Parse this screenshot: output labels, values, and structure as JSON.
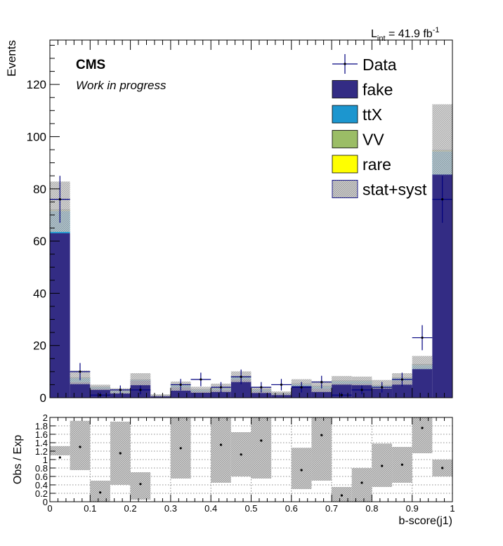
{
  "header": {
    "lumi_label": "L",
    "lumi_sub": "int",
    "lumi_value": " = 41.9 fb",
    "lumi_exp": "-1"
  },
  "stamp": {
    "experiment": "CMS",
    "status": "Work in progress"
  },
  "colors": {
    "fake": "#332c84",
    "ttX": "#1c96cf",
    "VV": "#9bbd66",
    "rare": "#ffff00",
    "data": "#00007f",
    "uncertainty": "#a0a0a0"
  },
  "chart_data": [
    {
      "type": "histogram",
      "name": "main",
      "ylabel": "Events",
      "xlim": [
        0,
        1
      ],
      "ylim": [
        0,
        137
      ],
      "yticks": [
        0,
        20,
        40,
        60,
        80,
        100,
        120
      ],
      "bin_edges": [
        0,
        0.05,
        0.1,
        0.15,
        0.2,
        0.25,
        0.3,
        0.35,
        0.4,
        0.45,
        0.5,
        0.55,
        0.6,
        0.65,
        0.7,
        0.75,
        0.8,
        0.85,
        0.9,
        0.95,
        1.0
      ],
      "stack": [
        {
          "name": "fake",
          "values": [
            63.0,
            6.0,
            3.5,
            2.0,
            6.5,
            0.7,
            4.0,
            2.5,
            3.0,
            7.0,
            2.5,
            1.5,
            4.5,
            3.5,
            5.5,
            5.5,
            3.8,
            6.5,
            11.0,
            85.5
          ]
        },
        {
          "name": "ttX",
          "values": [
            8.5,
            1.5,
            0.5,
            0.5,
            0.3,
            0.1,
            0.8,
            0.5,
            0.5,
            1.0,
            0.5,
            0.2,
            0.7,
            0.8,
            0.8,
            0.8,
            0.8,
            1.0,
            1.5,
            8.8
          ]
        },
        {
          "name": "VV",
          "values": [
            0.3,
            0.1,
            0.1,
            0.1,
            0.1,
            0.0,
            0.1,
            0.1,
            0.1,
            0.1,
            0.1,
            0.0,
            0.1,
            0.1,
            0.1,
            0.1,
            0.1,
            0.1,
            0.2,
            0.3
          ]
        },
        {
          "name": "rare",
          "values": [
            0.2,
            0.1,
            0.0,
            0.0,
            0.0,
            0.0,
            0.1,
            0.0,
            0.1,
            0.1,
            0.0,
            0.0,
            0.1,
            0.1,
            0.1,
            0.1,
            0.1,
            0.1,
            0.1,
            0.2
          ]
        }
      ],
      "uncertainty": {
        "name": "stat+syst",
        "down": [
          63.5,
          5.2,
          3.0,
          1.6,
          4.8,
          0.5,
          2.7,
          1.9,
          2.2,
          6.0,
          1.8,
          1.0,
          4.5,
          2.2,
          5.0,
          4.8,
          3.5,
          5.0,
          11.0,
          85.5
        ],
        "up": [
          82.8,
          10.4,
          5.0,
          3.6,
          9.4,
          1.3,
          6.2,
          4.2,
          5.4,
          10.1,
          4.2,
          2.4,
          7.1,
          6.3,
          8.3,
          8.1,
          6.8,
          9.4,
          16.0,
          112.4
        ]
      },
      "data": {
        "name": "Data",
        "values": [
          76,
          10,
          1,
          3,
          3,
          0,
          5,
          7,
          4,
          8,
          4,
          5,
          4,
          6,
          1,
          3,
          4,
          7,
          23,
          76
        ],
        "err_up": [
          9,
          3.3,
          1.0,
          1.7,
          1.7,
          0,
          2.2,
          2.6,
          2.0,
          2.8,
          2.0,
          2.2,
          2.0,
          2.4,
          1.0,
          1.7,
          2.0,
          2.6,
          4.8,
          9
        ],
        "err_down": [
          9,
          3.3,
          1.0,
          1.7,
          1.7,
          0,
          2.2,
          2.6,
          2.0,
          2.8,
          2.0,
          2.2,
          2.0,
          2.4,
          1.0,
          1.7,
          2.0,
          2.6,
          4.8,
          9
        ]
      },
      "legend": {
        "placement": "top-right",
        "entries": [
          {
            "label": "Data",
            "kind": "marker"
          },
          {
            "label": "fake",
            "kind": "fill",
            "series": "fake"
          },
          {
            "label": "ttX",
            "kind": "fill",
            "series": "ttX"
          },
          {
            "label": "VV",
            "kind": "fill",
            "series": "VV"
          },
          {
            "label": "rare",
            "kind": "fill",
            "series": "rare"
          },
          {
            "label": "stat+syst",
            "kind": "hatch"
          }
        ]
      }
    },
    {
      "type": "ratio",
      "name": "ratio",
      "ylabel": "Obs / Exp",
      "xlabel": "b-score(j1)",
      "xlim": [
        0,
        1
      ],
      "ylim": [
        0,
        2
      ],
      "yticks": [
        0,
        0.2,
        0.4,
        0.6,
        0.8,
        1,
        1.2,
        1.4,
        1.6,
        1.8,
        2
      ],
      "ytick_labels": [
        "0",
        "0.2",
        "0.4",
        "0.6",
        "0.8",
        "1",
        "1.2",
        "1.4",
        "1.6",
        "1.8",
        "2"
      ],
      "xticks": [
        0,
        0.1,
        0.2,
        0.3,
        0.4,
        0.5,
        0.6,
        0.7,
        0.8,
        0.9,
        1
      ],
      "xtick_labels": [
        "0",
        "0.1",
        "0.2",
        "0.3",
        "0.4",
        "0.5",
        "0.6",
        "0.7",
        "0.8",
        "0.9",
        "1"
      ],
      "grid": true,
      "ratio_values": [
        1.05,
        1.3,
        0.22,
        1.15,
        0.42,
        null,
        1.27,
        null,
        1.35,
        1.12,
        1.45,
        null,
        0.75,
        1.58,
        0.15,
        0.45,
        0.85,
        0.88,
        1.75,
        0.8
      ],
      "band_low": [
        1.1,
        0.75,
        0.0,
        0.4,
        0.05,
        null,
        0.55,
        null,
        0.45,
        0.6,
        0.55,
        null,
        0.3,
        0.5,
        0.0,
        0.0,
        0.35,
        0.45,
        1.15,
        0.6
      ],
      "band_high": [
        1.32,
        1.92,
        0.5,
        1.9,
        0.7,
        null,
        2.0,
        null,
        2.0,
        1.65,
        2.0,
        null,
        1.28,
        2.0,
        0.35,
        0.8,
        1.38,
        1.3,
        2.0,
        1.0
      ]
    }
  ]
}
